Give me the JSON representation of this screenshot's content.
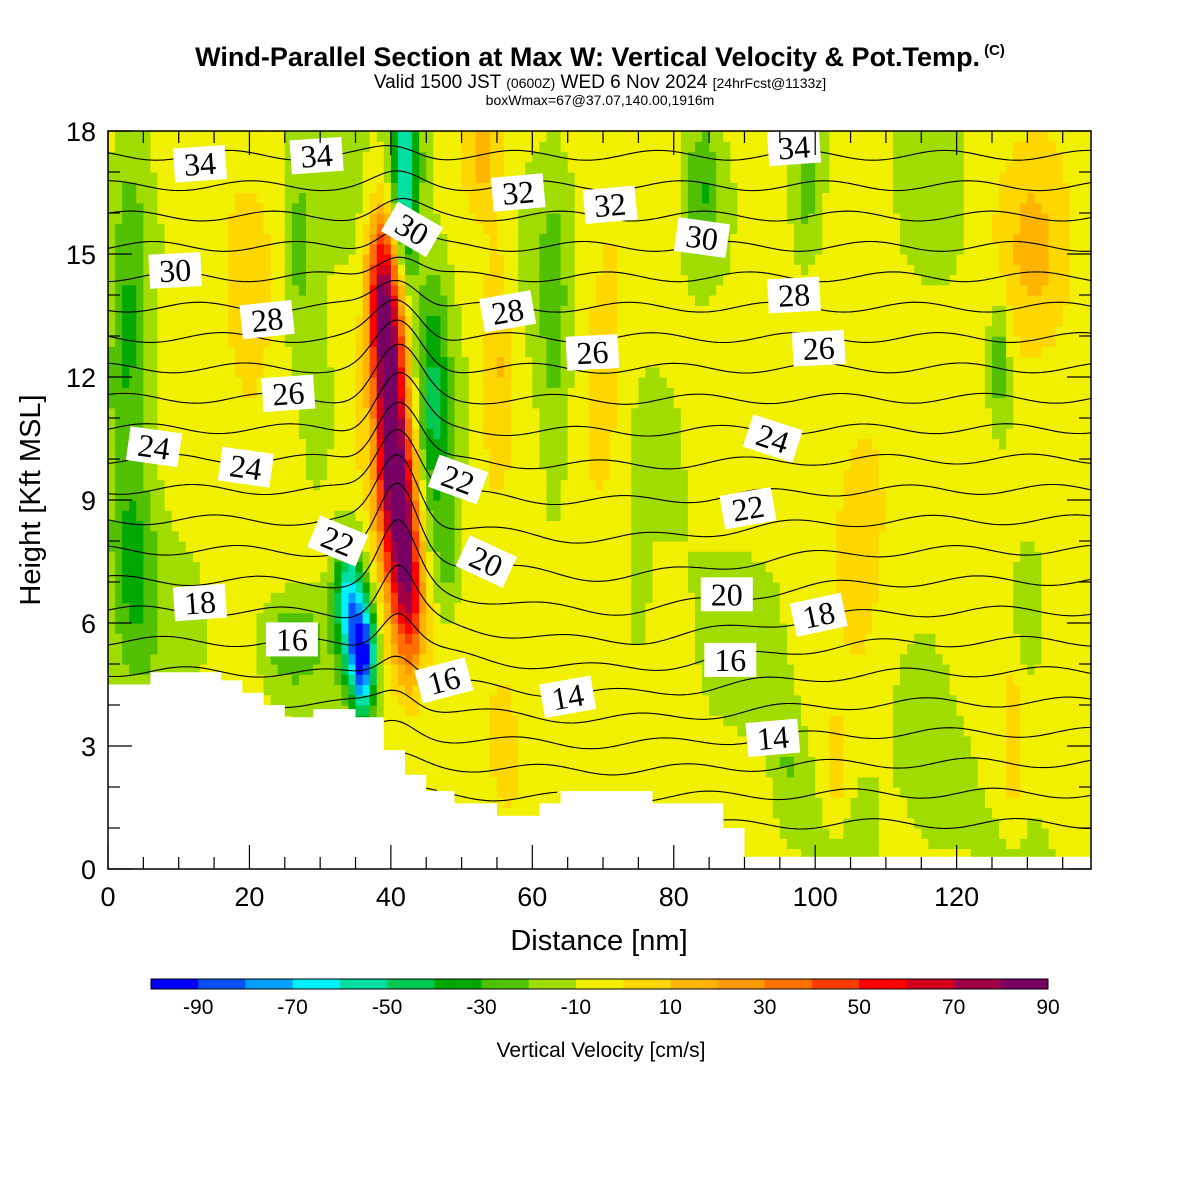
{
  "header": {
    "title": "Wind-Parallel Section at Max W: Vertical Velocity & Pot.Temp.",
    "copyright": "(C)",
    "valid_prefix": "Valid 1500 JST",
    "valid_utc": "(0600Z)",
    "valid_date": "WED 6 Nov 2024",
    "forecast_tag": "[24hrFcst@1133z]",
    "boxwmax": "boxWmax=67@37.07,140.00,1916m"
  },
  "chart_data": {
    "type": "contour-section",
    "xlabel": "Distance [nm]",
    "ylabel": "Height [Kft MSL]",
    "xlim": [
      0,
      139
    ],
    "ylim": [
      0,
      18
    ],
    "x_ticks": [
      0,
      20,
      40,
      60,
      80,
      100,
      120
    ],
    "x_tick_labels": [
      "0",
      "20",
      "40",
      "60",
      "80",
      "100",
      "120"
    ],
    "y_ticks": [
      0,
      3,
      6,
      9,
      12,
      15,
      18
    ],
    "y_tick_labels": [
      "0",
      "3",
      "6",
      "9",
      "12",
      "15",
      "18"
    ],
    "colorbar": {
      "label": "Vertical Velocity [cm/s]",
      "tick_labels": [
        "-90",
        "-70",
        "-50",
        "-30",
        "-10",
        "10",
        "30",
        "50",
        "70",
        "90"
      ],
      "colors": [
        "#0000ff",
        "#0a50ff",
        "#00a0ff",
        "#00f0ff",
        "#00dea0",
        "#00c850",
        "#00a800",
        "#50c000",
        "#a0dc00",
        "#f0f000",
        "#ffd700",
        "#ffb400",
        "#ff9900",
        "#ff7000",
        "#ff3c00",
        "#ff0000",
        "#d2001e",
        "#a00046",
        "#780064"
      ]
    },
    "terrain_kft": [
      [
        0,
        4.5
      ],
      [
        6,
        4.5
      ],
      [
        6,
        4.8
      ],
      [
        16,
        4.8
      ],
      [
        16,
        4.6
      ],
      [
        19,
        4.6
      ],
      [
        19,
        4.3
      ],
      [
        22,
        4.3
      ],
      [
        22,
        4.0
      ],
      [
        25,
        4.0
      ],
      [
        25,
        3.7
      ],
      [
        29,
        3.7
      ],
      [
        29,
        3.9
      ],
      [
        35,
        3.9
      ],
      [
        35,
        3.7
      ],
      [
        39,
        3.7
      ],
      [
        39,
        2.9
      ],
      [
        42,
        2.9
      ],
      [
        42,
        2.3
      ],
      [
        45,
        2.3
      ],
      [
        45,
        1.9
      ],
      [
        49,
        1.9
      ],
      [
        49,
        1.6
      ],
      [
        55,
        1.6
      ],
      [
        55,
        1.3
      ],
      [
        61,
        1.3
      ],
      [
        61,
        1.6
      ],
      [
        64,
        1.6
      ],
      [
        64,
        1.9
      ],
      [
        77,
        1.9
      ],
      [
        77,
        1.6
      ],
      [
        87,
        1.6
      ],
      [
        87,
        1.0
      ],
      [
        90,
        1.0
      ],
      [
        90,
        0.3
      ],
      [
        139,
        0.3
      ]
    ],
    "w_sources": [
      {
        "x": 40,
        "z": 11,
        "sx": 2.2,
        "sz": 3.5,
        "w": 95
      },
      {
        "x": 42,
        "z": 8,
        "sx": 2.0,
        "sz": 2.5,
        "w": 70
      },
      {
        "x": 38.5,
        "z": 14,
        "sx": 2.0,
        "sz": 2.0,
        "w": 65
      },
      {
        "x": 43,
        "z": 6.3,
        "sx": 1.8,
        "sz": 1.6,
        "w": 30
      },
      {
        "x": 36,
        "z": 5.2,
        "sx": 1.8,
        "sz": 1.4,
        "w": -85
      },
      {
        "x": 34,
        "z": 6.6,
        "sx": 2.0,
        "sz": 1.6,
        "w": -55
      },
      {
        "x": 42,
        "z": 17,
        "sx": 2.0,
        "sz": 2.5,
        "w": -55
      },
      {
        "x": 46,
        "z": 11.5,
        "sx": 2.4,
        "sz": 3.0,
        "w": -35
      },
      {
        "x": 48,
        "z": 7.5,
        "sx": 2.0,
        "sz": 2.0,
        "w": -18
      },
      {
        "x": 3,
        "z": 13,
        "sx": 3.0,
        "sz": 5.0,
        "w": -25
      },
      {
        "x": 4,
        "z": 7,
        "sx": 3.5,
        "sz": 2.5,
        "w": -18
      },
      {
        "x": 27,
        "z": 15,
        "sx": 2.5,
        "sz": 2.5,
        "w": -18
      },
      {
        "x": 30,
        "z": 11,
        "sx": 2.5,
        "sz": 2.0,
        "w": -15
      },
      {
        "x": 26,
        "z": 5.5,
        "sx": 4.0,
        "sz": 1.0,
        "w": -25
      },
      {
        "x": 63,
        "z": 13,
        "sx": 2.5,
        "sz": 4.0,
        "w": -15
      },
      {
        "x": 84,
        "z": 16.5,
        "sx": 3.0,
        "sz": 2.0,
        "w": -25
      },
      {
        "x": 99,
        "z": 16.5,
        "sx": 2.5,
        "sz": 2.0,
        "w": -20
      },
      {
        "x": 126,
        "z": 12.5,
        "sx": 1.5,
        "sz": 1.5,
        "w": -22
      },
      {
        "x": 130,
        "z": 6,
        "sx": 3.0,
        "sz": 2.0,
        "w": -15
      },
      {
        "x": 75,
        "z": 6.5,
        "sx": 1.5,
        "sz": 1.5,
        "w": -12
      },
      {
        "x": 96,
        "z": 2.5,
        "sx": 2.0,
        "sz": 1.5,
        "w": -12
      },
      {
        "x": 118,
        "z": 2.0,
        "sx": 4.0,
        "sz": 1.5,
        "w": -10
      },
      {
        "x": 53,
        "z": 17.5,
        "sx": 3.0,
        "sz": 1.5,
        "w": 22
      },
      {
        "x": 55,
        "z": 12.5,
        "sx": 2.5,
        "sz": 3.0,
        "w": 20
      },
      {
        "x": 70,
        "z": 11.5,
        "sx": 3.5,
        "sz": 3.5,
        "w": 16
      },
      {
        "x": 106,
        "z": 8,
        "sx": 3.5,
        "sz": 3.0,
        "w": 14
      },
      {
        "x": 131,
        "z": 15,
        "sx": 6.0,
        "sz": 3.0,
        "w": 20
      },
      {
        "x": 103,
        "z": 2.5,
        "sx": 1.5,
        "sz": 1.2,
        "w": 20
      },
      {
        "x": 56,
        "z": 3.0,
        "sx": 2.0,
        "sz": 1.5,
        "w": 14
      },
      {
        "x": 128,
        "z": 3.0,
        "sx": 1.5,
        "sz": 2.0,
        "w": 14
      },
      {
        "x": 20,
        "z": 13,
        "sx": 3.0,
        "sz": 3.0,
        "w": 10
      }
    ],
    "theta_contour_labels": [
      {
        "text": "34",
        "x": 13,
        "z": 17.2,
        "rot": -4
      },
      {
        "text": "34",
        "x": 29.5,
        "z": 17.4,
        "rot": -4
      },
      {
        "text": "34",
        "x": 97,
        "z": 17.6,
        "rot": -4
      },
      {
        "text": "32",
        "x": 58,
        "z": 16.5,
        "rot": -5
      },
      {
        "text": "32",
        "x": 71,
        "z": 16.2,
        "rot": -5
      },
      {
        "text": "30",
        "x": 43,
        "z": 15.6,
        "rot": 30
      },
      {
        "text": "30",
        "x": 84,
        "z": 15.4,
        "rot": 8
      },
      {
        "text": "30",
        "x": 9.5,
        "z": 14.6,
        "rot": -3
      },
      {
        "text": "28",
        "x": 22.5,
        "z": 13.4,
        "rot": -6
      },
      {
        "text": "28",
        "x": 56.5,
        "z": 13.6,
        "rot": -10
      },
      {
        "text": "28",
        "x": 97,
        "z": 14.0,
        "rot": -3
      },
      {
        "text": "26",
        "x": 68.5,
        "z": 12.6,
        "rot": -3
      },
      {
        "text": "26",
        "x": 100.5,
        "z": 12.7,
        "rot": -3
      },
      {
        "text": "26",
        "x": 25.5,
        "z": 11.6,
        "rot": -4
      },
      {
        "text": "24",
        "x": 94,
        "z": 10.5,
        "rot": 18
      },
      {
        "text": "24",
        "x": 6.5,
        "z": 10.3,
        "rot": 8
      },
      {
        "text": "24",
        "x": 19.5,
        "z": 9.8,
        "rot": 8
      },
      {
        "text": "22",
        "x": 49.5,
        "z": 9.5,
        "rot": 20
      },
      {
        "text": "22",
        "x": 90.5,
        "z": 8.8,
        "rot": -10
      },
      {
        "text": "22",
        "x": 32.5,
        "z": 8.0,
        "rot": 22
      },
      {
        "text": "20",
        "x": 53.5,
        "z": 7.5,
        "rot": 25
      },
      {
        "text": "20",
        "x": 87.5,
        "z": 6.7,
        "rot": 0
      },
      {
        "text": "18",
        "x": 13,
        "z": 6.5,
        "rot": -4
      },
      {
        "text": "18",
        "x": 100.5,
        "z": 6.2,
        "rot": -12
      },
      {
        "text": "16",
        "x": 26,
        "z": 5.6,
        "rot": 0
      },
      {
        "text": "16",
        "x": 88,
        "z": 5.1,
        "rot": 0
      },
      {
        "text": "16",
        "x": 47.5,
        "z": 4.6,
        "rot": -15
      },
      {
        "text": "14",
        "x": 65,
        "z": 4.2,
        "rot": -10
      },
      {
        "text": "14",
        "x": 94,
        "z": 3.2,
        "rot": -5
      }
    ]
  }
}
